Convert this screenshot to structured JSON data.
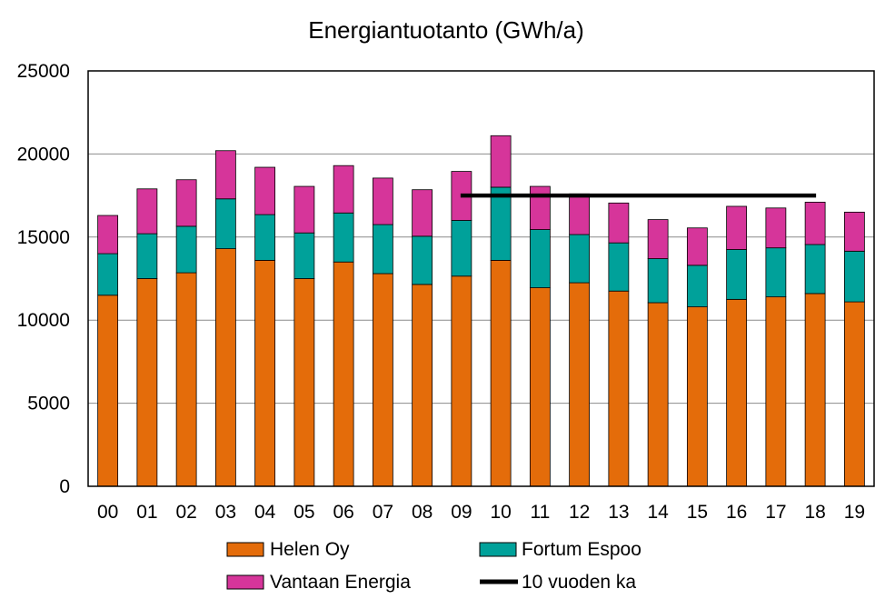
{
  "chart_data": {
    "type": "bar",
    "stacked": true,
    "title": "Energiantuotanto (GWh/a)",
    "xlabel": "",
    "ylabel": "",
    "ylim": [
      0,
      25000
    ],
    "yticks": [
      "0",
      "5000",
      "10000",
      "15000",
      "20000",
      "25000"
    ],
    "grid": true,
    "legend_position": "bottom",
    "categories": [
      "00",
      "01",
      "02",
      "03",
      "04",
      "05",
      "06",
      "07",
      "08",
      "09",
      "10",
      "11",
      "12",
      "13",
      "14",
      "15",
      "16",
      "17",
      "18",
      "19"
    ],
    "series": [
      {
        "name": "Helen Oy",
        "color": "#E46C0A",
        "values": [
          11500,
          12500,
          12850,
          14300,
          13600,
          12500,
          13500,
          12800,
          12150,
          12650,
          13600,
          11950,
          12250,
          11750,
          11050,
          10800,
          11250,
          11400,
          11600,
          11100
        ]
      },
      {
        "name": "Fortum Espoo",
        "color": "#00A19A",
        "values": [
          2500,
          2700,
          2800,
          3000,
          2750,
          2750,
          2950,
          2950,
          2900,
          3350,
          4400,
          3500,
          2900,
          2900,
          2650,
          2500,
          3000,
          2950,
          2950,
          3050
        ]
      },
      {
        "name": "Vantaan Energia",
        "color": "#D6359A",
        "values": [
          2300,
          2700,
          2800,
          2900,
          2850,
          2800,
          2850,
          2800,
          2800,
          2950,
          3100,
          2600,
          2450,
          2400,
          2350,
          2250,
          2600,
          2400,
          2550,
          2350
        ]
      }
    ],
    "line_series": {
      "name": "10 vuoden ka",
      "color": "#000000",
      "x_start": "09",
      "x_end": "18",
      "value": 17500
    }
  }
}
